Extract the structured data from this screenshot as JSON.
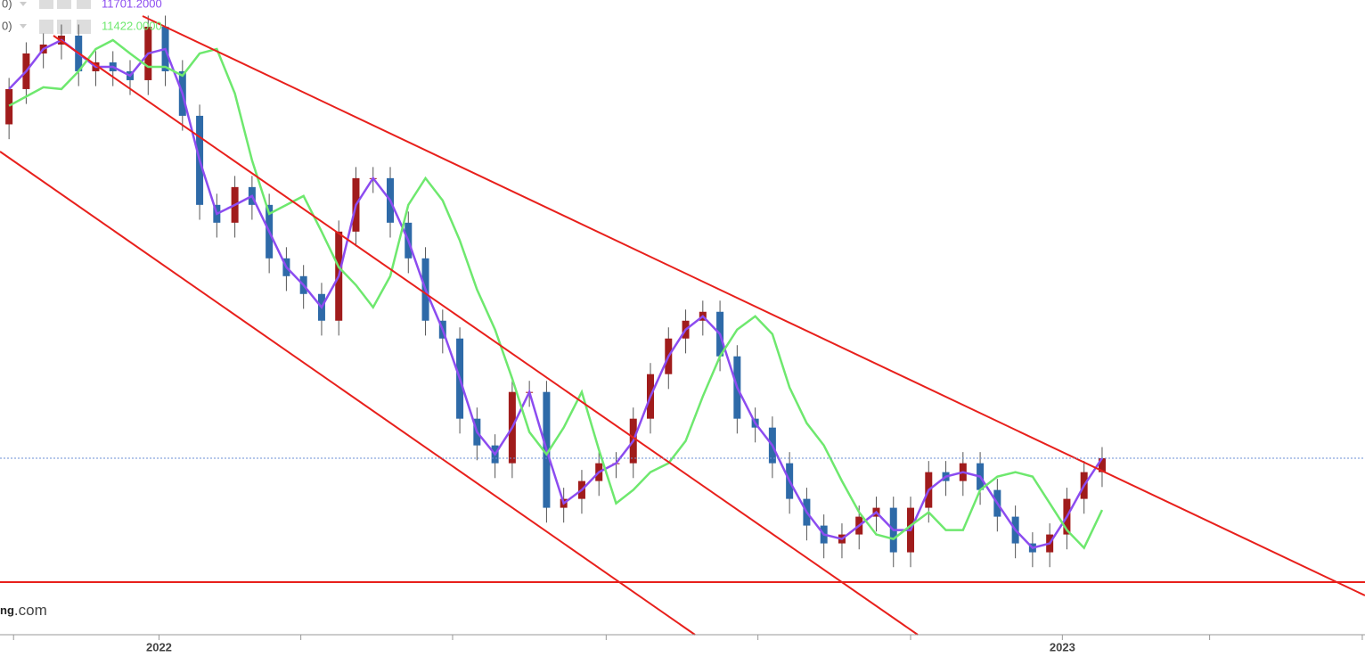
{
  "chart_data": {
    "type": "candlestick",
    "xlim": [
      2021.824,
      2023.335
    ],
    "ylim": [
      10750,
      14170
    ],
    "xticks": [
      {
        "value": 2022.0,
        "label": "2022"
      },
      {
        "value": 2023.0,
        "label": "2023"
      }
    ],
    "xminorticks": [
      2021.839,
      2022.157,
      2022.325,
      2022.495,
      2022.663,
      2022.832,
      2023.163,
      2023.332
    ],
    "up_color": "#a01c1c",
    "down_color": "#2e6aa8",
    "legend_prefixes": [
      "0)",
      "0)"
    ],
    "watermark": {
      "bold": "ng",
      "rest": ".com"
    },
    "x": [
      2021.834,
      2021.853,
      2021.872,
      2021.892,
      2021.911,
      2021.93,
      2021.949,
      2021.968,
      2021.988,
      2022.007,
      2022.026,
      2022.045,
      2022.064,
      2022.084,
      2022.103,
      2022.122,
      2022.141,
      2022.16,
      2022.18,
      2022.199,
      2022.218,
      2022.237,
      2022.256,
      2022.276,
      2022.295,
      2022.314,
      2022.333,
      2022.352,
      2022.372,
      2022.391,
      2022.41,
      2022.429,
      2022.448,
      2022.468,
      2022.487,
      2022.506,
      2022.525,
      2022.544,
      2022.564,
      2022.583,
      2022.602,
      2022.621,
      2022.64,
      2022.66,
      2022.679,
      2022.698,
      2022.717,
      2022.736,
      2022.756,
      2022.775,
      2022.794,
      2022.813,
      2022.832,
      2022.852,
      2022.871,
      2022.89,
      2022.909,
      2022.928,
      2022.948,
      2022.967,
      2022.986,
      2023.005,
      2023.024,
      2023.044
    ],
    "open": [
      13500,
      13690,
      13882,
      13930,
      13978,
      13786,
      13834,
      13786,
      13738,
      14026,
      13786,
      13546,
      13066,
      12970,
      13162,
      13066,
      12778,
      12682,
      12586,
      12442,
      12922,
      13210,
      13210,
      12970,
      12778,
      12442,
      12346,
      11914,
      11770,
      11674,
      12058,
      12058,
      11434,
      11482,
      11578,
      11674,
      11674,
      11914,
      12154,
      12346,
      12442,
      12490,
      12250,
      11914,
      11866,
      11674,
      11482,
      11338,
      11242,
      11290,
      11386,
      11434,
      11194,
      11434,
      11626,
      11578,
      11674,
      11530,
      11386,
      11242,
      11194,
      11290,
      11482,
      11626
    ],
    "high": [
      13750,
      13942,
      13990,
      14038,
      14038,
      13894,
      13894,
      13846,
      14086,
      14086,
      13846,
      13606,
      13126,
      13222,
      13222,
      13126,
      12838,
      12742,
      12646,
      12982,
      13270,
      13270,
      13270,
      13030,
      12838,
      12502,
      12406,
      11974,
      11830,
      12118,
      12118,
      12118,
      11542,
      11638,
      11734,
      11734,
      11974,
      12214,
      12406,
      12502,
      12550,
      12550,
      12310,
      11974,
      11926,
      11734,
      11542,
      11398,
      11350,
      11446,
      11494,
      11494,
      11494,
      11686,
      11686,
      11734,
      11734,
      11590,
      11446,
      11302,
      11350,
      11542,
      11686,
      11761
    ],
    "low": [
      13420,
      13610,
      13802,
      13850,
      13706,
      13706,
      13706,
      13658,
      13658,
      13706,
      13466,
      12986,
      12890,
      12890,
      12986,
      12698,
      12602,
      12506,
      12362,
      12362,
      12842,
      13130,
      12890,
      12698,
      12362,
      12266,
      11834,
      11690,
      11594,
      11594,
      11978,
      11354,
      11354,
      11402,
      11498,
      11594,
      11594,
      11834,
      12074,
      12266,
      12362,
      12170,
      11834,
      11786,
      11594,
      11402,
      11258,
      11162,
      11162,
      11210,
      11306,
      11114,
      11114,
      11354,
      11498,
      11498,
      11450,
      11306,
      11162,
      11114,
      11114,
      11210,
      11402,
      11546
    ],
    "close": [
      13690,
      13882,
      13930,
      13978,
      13786,
      13834,
      13786,
      13738,
      14026,
      13786,
      13546,
      13066,
      12970,
      13162,
      13066,
      12778,
      12682,
      12586,
      12442,
      12922,
      13210,
      13210,
      12970,
      12778,
      12442,
      12346,
      11914,
      11770,
      11674,
      12058,
      12058,
      11434,
      11482,
      11578,
      11674,
      11674,
      11914,
      12154,
      12346,
      12442,
      12490,
      12250,
      11914,
      11866,
      11674,
      11482,
      11338,
      11242,
      11290,
      11386,
      11434,
      11194,
      11434,
      11626,
      11578,
      11674,
      11530,
      11386,
      11242,
      11194,
      11290,
      11482,
      11626,
      11701
    ],
    "series": [
      {
        "label": "11701.2000",
        "color": "#8c4cf0",
        "values": [
          13690,
          13786,
          13906,
          13954,
          13882,
          13810,
          13810,
          13762,
          13882,
          13906,
          13666,
          13306,
          13018,
          13066,
          13114,
          12922,
          12730,
          12634,
          12514,
          12682,
          13066,
          13210,
          13090,
          12874,
          12610,
          12394,
          12130,
          11842,
          11722,
          11866,
          12058,
          11746,
          11458,
          11530,
          11626,
          11674,
          11794,
          12034,
          12250,
          12394,
          12466,
          12370,
          12082,
          11890,
          11770,
          11578,
          11410,
          11290,
          11266,
          11338,
          11410,
          11314,
          11314,
          11530,
          11602,
          11626,
          11602,
          11458,
          11314,
          11218,
          11242,
          11386,
          11554,
          11701.2
        ]
      },
      {
        "label": "11422.0000",
        "color": "#6ee86e",
        "values": [
          13600,
          13650,
          13700,
          13690,
          13786,
          13906,
          13954,
          13882,
          13810,
          13810,
          13762,
          13882,
          13906,
          13666,
          13306,
          13018,
          13066,
          13114,
          12922,
          12730,
          12634,
          12514,
          12682,
          13066,
          13210,
          13090,
          12874,
          12610,
          12394,
          12130,
          11842,
          11722,
          11866,
          12058,
          11746,
          11458,
          11530,
          11626,
          11674,
          11794,
          12034,
          12250,
          12394,
          12466,
          12370,
          12082,
          11890,
          11770,
          11578,
          11410,
          11290,
          11266,
          11338,
          11410,
          11314,
          11314,
          11530,
          11602,
          11626,
          11602,
          11458,
          11314,
          11218,
          11422
        ]
      }
    ]
  }
}
